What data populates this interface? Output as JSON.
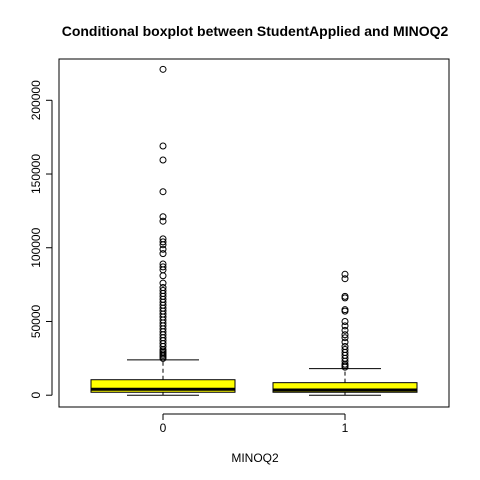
{
  "chart_data": {
    "type": "boxplot",
    "title": "Conditional boxplot between StudentApplied and MINOQ2",
    "xlabel": "MINOQ2",
    "ylabel": "",
    "ylim": [
      -8000,
      228000
    ],
    "y_ticks": [
      0,
      50000,
      100000,
      150000,
      200000
    ],
    "y_tick_labels": [
      "0",
      "50000",
      "100000",
      "150000",
      "200000"
    ],
    "categories": [
      "0",
      "1"
    ],
    "box_fill": "#ffff00",
    "boxes": [
      {
        "name": "0",
        "whisker_low": 0,
        "q1": 2000,
        "median": 4000,
        "q3": 10500,
        "whisker_high": 24000,
        "outliers": [
          221000,
          169000,
          159500,
          138000,
          121000,
          118000,
          106000,
          104000,
          102000,
          99000,
          96000,
          89000,
          87000,
          85000,
          81000,
          76000,
          73000,
          71000,
          69000,
          67000,
          65000,
          63000,
          61000,
          59000,
          57000,
          55000,
          53000,
          51000,
          49000,
          47000,
          45000,
          43000,
          41000,
          39000,
          37000,
          35000,
          33000,
          31000,
          30000,
          29000,
          28000,
          27000,
          26000,
          25000
        ]
      },
      {
        "name": "1",
        "whisker_low": 0,
        "q1": 2000,
        "median": 3500,
        "q3": 8500,
        "whisker_high": 18000,
        "outliers": [
          82000,
          79000,
          67000,
          66000,
          58000,
          57000,
          50000,
          47000,
          44000,
          41000,
          39000,
          36000,
          33000,
          31000,
          29000,
          27000,
          25000,
          23000,
          21000,
          20000,
          19000
        ]
      }
    ]
  }
}
